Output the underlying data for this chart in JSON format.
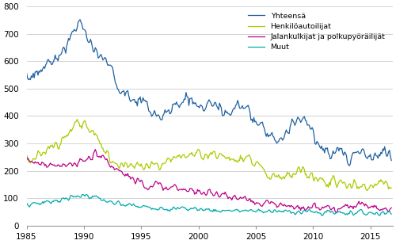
{
  "xlim": [
    1985.0,
    2016.95
  ],
  "ylim": [
    0,
    800
  ],
  "yticks": [
    0,
    100,
    200,
    300,
    400,
    500,
    600,
    700,
    800
  ],
  "xticks": [
    1985,
    1990,
    1995,
    2000,
    2005,
    2010,
    2015
  ],
  "colors": {
    "total": "#2060a0",
    "henk": "#aacc00",
    "jalan": "#bb0088",
    "muut": "#00aaaa"
  },
  "legend_labels": [
    "Yhteensä",
    "Henkilöautoilijat",
    "Jalankulkijat ja polkupyöräilijät",
    "Muut"
  ],
  "grid_color": "#cccccc",
  "background_color": "#ffffff",
  "linewidth": 0.9
}
